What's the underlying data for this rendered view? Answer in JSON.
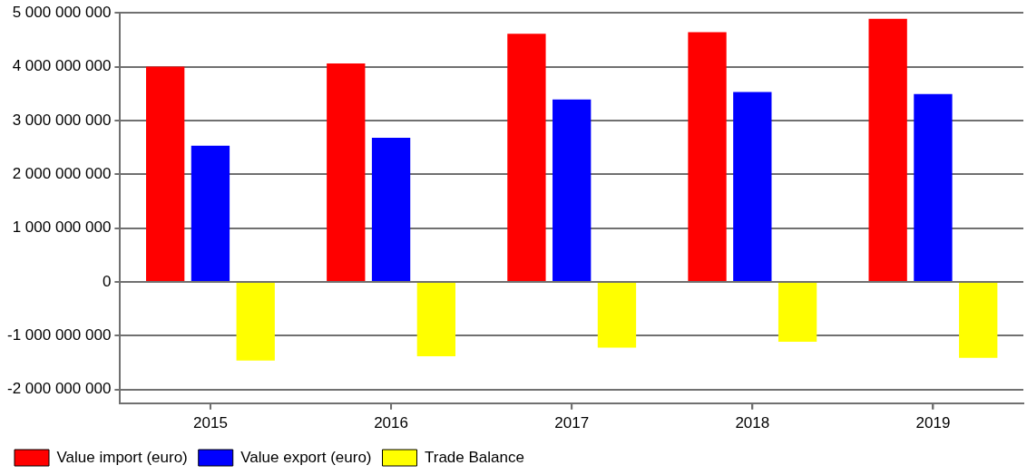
{
  "chart_data": {
    "type": "bar",
    "categories": [
      "2015",
      "2016",
      "2017",
      "2018",
      "2019"
    ],
    "series": [
      {
        "name": "Value import (euro)",
        "color": "#ff0000",
        "values": [
          4000000000,
          4060000000,
          4610000000,
          4640000000,
          4890000000
        ]
      },
      {
        "name": "Value export (euro)",
        "color": "#0000ff",
        "values": [
          2530000000,
          2680000000,
          3390000000,
          3530000000,
          3490000000
        ]
      },
      {
        "name": "Trade Balance",
        "color": "#ffff00",
        "values": [
          -1460000000,
          -1380000000,
          -1220000000,
          -1110000000,
          -1410000000
        ]
      }
    ],
    "ylim": [
      -2250000000,
      5000000000
    ],
    "yticks": [
      {
        "value": -2000000000,
        "label": "-2 000 000 000"
      },
      {
        "value": -1000000000,
        "label": "-1 000 000 000"
      },
      {
        "value": 0,
        "label": "0"
      },
      {
        "value": 1000000000,
        "label": "1 000 000 000"
      },
      {
        "value": 2000000000,
        "label": "2 000 000 000"
      },
      {
        "value": 3000000000,
        "label": "3 000 000 000"
      },
      {
        "value": 4000000000,
        "label": "4 000 000 000"
      },
      {
        "value": 5000000000,
        "label": "5 000 000 000"
      }
    ],
    "grid": "y",
    "legend": "bottom"
  }
}
